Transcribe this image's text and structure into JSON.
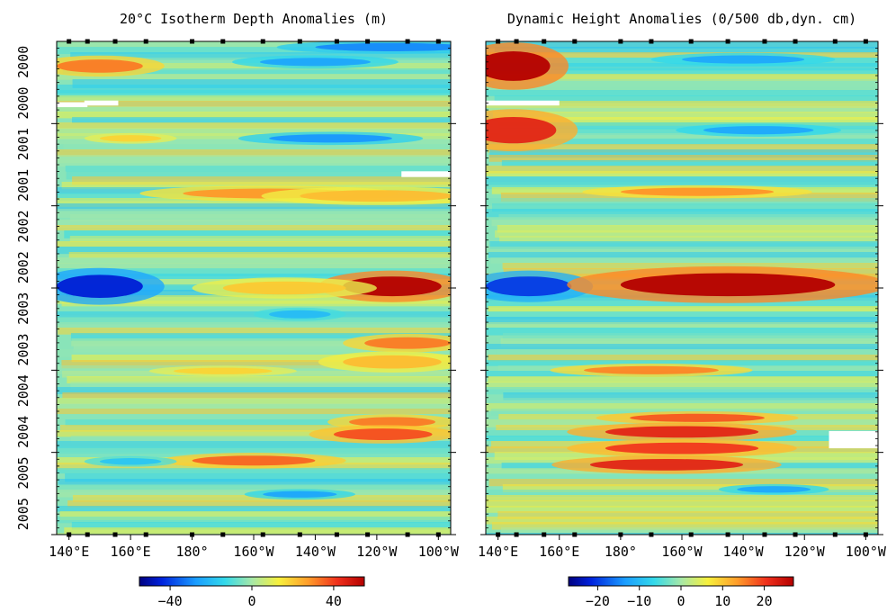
{
  "chart_data": [
    {
      "type": "heatmap",
      "title": "20°C Isotherm Depth Anomalies (m)",
      "x_tick_labels": [
        "140°E",
        "160°E",
        "180°",
        "160°W",
        "140°W",
        "120°W",
        "100°W"
      ],
      "x_tick_values": [
        140,
        160,
        180,
        200,
        220,
        240,
        260
      ],
      "xlim": [
        136,
        264
      ],
      "y_tick_labels": [
        "2000",
        "2000",
        "2001",
        "2001",
        "2002",
        "2002",
        "2003",
        "2003",
        "2004",
        "2004",
        "2005",
        "2005"
      ],
      "ylim": [
        1999.5,
        2005.5
      ],
      "colorbar": {
        "ticks": [
          -40,
          0,
          40
        ],
        "range": [
          -55,
          55
        ]
      },
      "features": [
        {
          "lon": 150,
          "time": 1999.8,
          "lon_width": 14,
          "time_width": 0.08,
          "value": 32
        },
        {
          "lon": 220,
          "time": 1999.75,
          "lon_width": 18,
          "time_width": 0.05,
          "value": -25
        },
        {
          "lon": 245,
          "time": 1999.57,
          "lon_width": 25,
          "time_width": 0.05,
          "value": -30
        },
        {
          "lon": 160,
          "time": 2000.68,
          "lon_width": 10,
          "time_width": 0.04,
          "value": 18
        },
        {
          "lon": 225,
          "time": 2000.68,
          "lon_width": 20,
          "time_width": 0.05,
          "value": -28
        },
        {
          "lon": 205,
          "time": 2001.35,
          "lon_width": 28,
          "time_width": 0.06,
          "value": 28
        },
        {
          "lon": 240,
          "time": 2001.38,
          "lon_width": 25,
          "time_width": 0.07,
          "value": 22
        },
        {
          "lon": 150,
          "time": 2002.48,
          "lon_width": 14,
          "time_width": 0.14,
          "value": -45
        },
        {
          "lon": 245,
          "time": 2002.48,
          "lon_width": 16,
          "time_width": 0.12,
          "value": 55
        },
        {
          "lon": 210,
          "time": 2002.5,
          "lon_width": 20,
          "time_width": 0.08,
          "value": 20
        },
        {
          "lon": 215,
          "time": 2002.82,
          "lon_width": 10,
          "time_width": 0.05,
          "value": -20
        },
        {
          "lon": 250,
          "time": 2003.17,
          "lon_width": 14,
          "time_width": 0.07,
          "value": 32
        },
        {
          "lon": 245,
          "time": 2003.4,
          "lon_width": 16,
          "time_width": 0.08,
          "value": 22
        },
        {
          "lon": 190,
          "time": 2003.51,
          "lon_width": 16,
          "time_width": 0.04,
          "value": 18
        },
        {
          "lon": 245,
          "time": 2004.13,
          "lon_width": 14,
          "time_width": 0.06,
          "value": 32
        },
        {
          "lon": 242,
          "time": 2004.28,
          "lon_width": 16,
          "time_width": 0.07,
          "value": 38
        },
        {
          "lon": 200,
          "time": 2004.6,
          "lon_width": 20,
          "time_width": 0.06,
          "value": 35
        },
        {
          "lon": 215,
          "time": 2005.01,
          "lon_width": 12,
          "time_width": 0.04,
          "value": -25
        },
        {
          "lon": 160,
          "time": 2004.61,
          "lon_width": 10,
          "time_width": 0.04,
          "value": -18
        }
      ]
    },
    {
      "type": "heatmap",
      "title": "Dynamic Height Anomalies (0/500 db,dyn. cm)",
      "x_tick_labels": [
        "140°E",
        "160°E",
        "180°",
        "160°W",
        "140°W",
        "120°W",
        "100°W"
      ],
      "x_tick_values": [
        140,
        160,
        180,
        200,
        220,
        240,
        260
      ],
      "xlim": [
        136,
        264
      ],
      "y_tick_labels": [
        "2000",
        "2000",
        "2001",
        "2001",
        "2002",
        "2002",
        "2003",
        "2003",
        "2004",
        "2004",
        "2005",
        "2005"
      ],
      "ylim": [
        1999.5,
        2005.5
      ],
      "colorbar": {
        "ticks": [
          -20,
          -10,
          0,
          10,
          20
        ],
        "range": [
          -27,
          27
        ]
      },
      "features": [
        {
          "lon": 145,
          "time": 1999.8,
          "lon_width": 12,
          "time_width": 0.18,
          "value": 27
        },
        {
          "lon": 145,
          "time": 2000.58,
          "lon_width": 14,
          "time_width": 0.16,
          "value": 22
        },
        {
          "lon": 220,
          "time": 1999.72,
          "lon_width": 20,
          "time_width": 0.05,
          "value": -12
        },
        {
          "lon": 225,
          "time": 2000.58,
          "lon_width": 18,
          "time_width": 0.05,
          "value": -12
        },
        {
          "lon": 205,
          "time": 2001.33,
          "lon_width": 25,
          "time_width": 0.05,
          "value": 14
        },
        {
          "lon": 150,
          "time": 2002.48,
          "lon_width": 14,
          "time_width": 0.12,
          "value": -20
        },
        {
          "lon": 215,
          "time": 2002.46,
          "lon_width": 35,
          "time_width": 0.14,
          "value": 27
        },
        {
          "lon": 190,
          "time": 2003.5,
          "lon_width": 22,
          "time_width": 0.05,
          "value": 15
        },
        {
          "lon": 205,
          "time": 2004.08,
          "lon_width": 22,
          "time_width": 0.05,
          "value": 18
        },
        {
          "lon": 200,
          "time": 2004.25,
          "lon_width": 25,
          "time_width": 0.07,
          "value": 22
        },
        {
          "lon": 200,
          "time": 2004.45,
          "lon_width": 25,
          "time_width": 0.07,
          "value": 20
        },
        {
          "lon": 195,
          "time": 2004.65,
          "lon_width": 25,
          "time_width": 0.07,
          "value": 22
        },
        {
          "lon": 230,
          "time": 2004.95,
          "lon_width": 12,
          "time_width": 0.04,
          "value": -12
        }
      ]
    }
  ]
}
